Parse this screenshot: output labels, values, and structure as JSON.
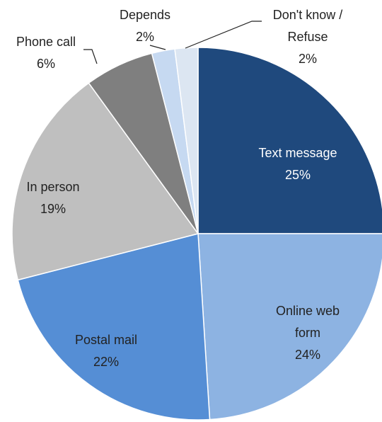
{
  "chart_data": {
    "type": "pie",
    "categories": [
      "Text message",
      "Online web form",
      "Postal mail",
      "In person",
      "Phone call",
      "Depends",
      "Don't know / Refuse"
    ],
    "values": [
      25,
      24,
      22,
      19,
      6,
      2,
      2
    ],
    "value_labels": [
      "25%",
      "24%",
      "22%",
      "19%",
      "6%",
      "2%",
      "2%"
    ],
    "colors": [
      "#1f497d",
      "#8db3e2",
      "#558ed5",
      "#bfbfbf",
      "#7f7f7f",
      "#c6d9f1",
      "#dce6f2"
    ]
  }
}
